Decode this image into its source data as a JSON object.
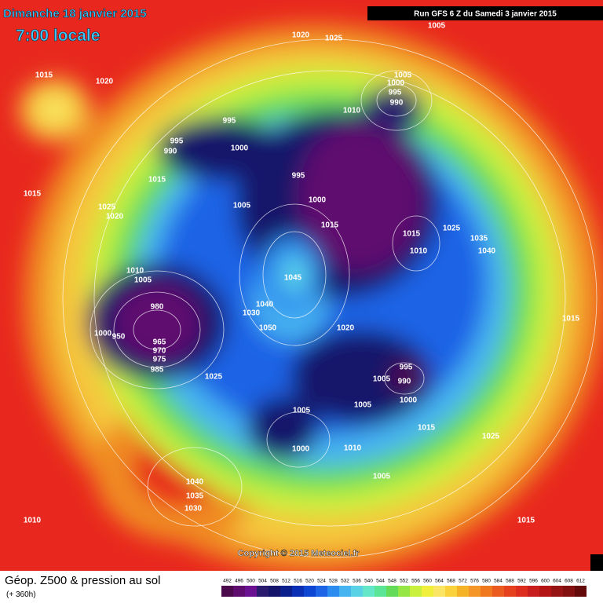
{
  "header": {
    "title": "Dimanche 18 janvier 2015",
    "time": "7:00 locale",
    "run": "Run GFS 6 Z du Samedi 3 janvier 2015"
  },
  "map": {
    "copyright": "Copyright © 2015 Meteociel.fr",
    "isobar_labels": [
      1020,
      1025,
      1005,
      1015,
      1020,
      1005,
      1000,
      995,
      990,
      1010,
      995,
      995,
      990,
      1000,
      1015,
      1015,
      995,
      1000,
      1025,
      1020,
      1005,
      1015,
      1015,
      1025,
      1035,
      1040,
      1010,
      1010,
      1005,
      1045,
      980,
      1040,
      1030,
      1015,
      1000,
      950,
      965,
      970,
      975,
      985,
      1050,
      1020,
      1025,
      995,
      1005,
      990,
      1000,
      1005,
      1005,
      1015,
      1025,
      1000,
      1010,
      1005,
      1040,
      1035,
      1030,
      1010,
      1015
    ]
  },
  "footer": {
    "title": "Géop. Z500 & pression au sol",
    "lead": "(+ 360h)",
    "colorbar": {
      "values": [
        492,
        496,
        500,
        504,
        508,
        512,
        516,
        520,
        524,
        528,
        532,
        536,
        540,
        544,
        548,
        552,
        556,
        560,
        564,
        568,
        572,
        576,
        580,
        584,
        588,
        592,
        596,
        600,
        604,
        608,
        612
      ],
      "colors": [
        "#4b0a4b",
        "#5e0c6e",
        "#6a1192",
        "#2a1a6e",
        "#14146a",
        "#0a1e8c",
        "#0a2fb4",
        "#0c46d2",
        "#1e64e6",
        "#2d8cf0",
        "#46b4f0",
        "#5ad2e6",
        "#64e6c8",
        "#5ae696",
        "#64dc5a",
        "#96e646",
        "#c8f03c",
        "#f0f03c",
        "#fae664",
        "#fad23c",
        "#f5b428",
        "#f59628",
        "#f0781e",
        "#eb5a1e",
        "#e6411e",
        "#dc2d1e",
        "#c81e1e",
        "#b41414",
        "#961414",
        "#821010",
        "#640a0a"
      ]
    }
  }
}
